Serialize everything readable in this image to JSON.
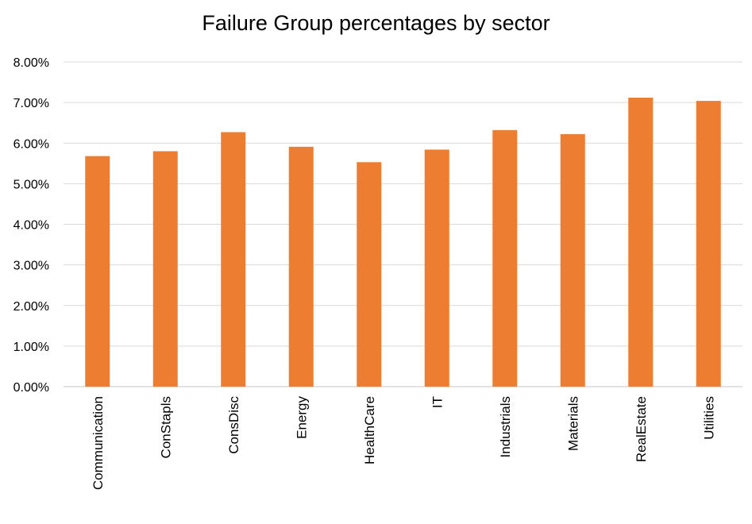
{
  "chart_data": {
    "type": "bar",
    "title": "Failure Group percentages by sector",
    "xlabel": "",
    "ylabel": "",
    "categories": [
      "Communication",
      "ConStapls",
      "ConsDisc",
      "Energy",
      "HealthCare",
      "IT",
      "Industrials",
      "Materials",
      "RealEstate",
      "Utilities"
    ],
    "values": [
      5.68,
      5.8,
      6.27,
      5.91,
      5.53,
      5.84,
      6.32,
      6.22,
      7.12,
      7.04
    ],
    "ylim": [
      0,
      8
    ],
    "yticks": [
      0,
      1,
      2,
      3,
      4,
      5,
      6,
      7,
      8
    ],
    "ytick_labels": [
      "0.00%",
      "1.00%",
      "2.00%",
      "3.00%",
      "4.00%",
      "5.00%",
      "6.00%",
      "7.00%",
      "8.00%"
    ],
    "grid": true,
    "legend": "none",
    "colors": {
      "bar": "#ED7D31",
      "grid": "#D9D9D9",
      "text": "#000000"
    }
  }
}
